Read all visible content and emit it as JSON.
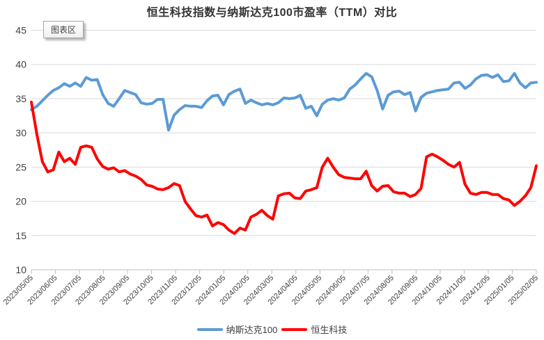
{
  "chart_area_tooltip": {
    "label": "图表区"
  },
  "chart_data": {
    "type": "line",
    "title": "恒生科技指数与纳斯达克100市盈率（TTM）对比",
    "xlabel": "",
    "ylabel": "",
    "ylim": [
      10,
      45
    ],
    "y_ticks": [
      10,
      15,
      20,
      25,
      30,
      35,
      40,
      45
    ],
    "grid": true,
    "legend_position": "bottom",
    "x_tick_labels": [
      "2023/05/05",
      "2023/06/05",
      "2023/07/05",
      "2023/08/05",
      "2023/09/05",
      "2023/10/05",
      "2023/11/05",
      "2023/12/05",
      "2024/01/05",
      "2024/02/05",
      "2024/03/05",
      "2024/04/05",
      "2024/05/05",
      "2024/06/05",
      "2024/07/05",
      "2024/08/05",
      "2024/09/05",
      "2024/10/05",
      "2024/11/05",
      "2024/12/05",
      "2025/01/05",
      "2025/02/05"
    ],
    "series": [
      {
        "name": "纳斯达克100",
        "color": "#5B9BD5",
        "values": [
          33.4,
          33.9,
          34.7,
          35.5,
          36.2,
          36.6,
          37.2,
          36.8,
          37.3,
          36.8,
          38.1,
          37.7,
          37.8,
          35.6,
          34.3,
          33.9,
          35.0,
          36.2,
          35.9,
          35.6,
          34.4,
          34.2,
          34.3,
          34.9,
          34.9,
          30.4,
          32.6,
          33.4,
          34.0,
          33.9,
          33.9,
          33.7,
          34.7,
          35.4,
          35.5,
          34.1,
          35.6,
          36.1,
          36.4,
          34.3,
          34.8,
          34.4,
          34.1,
          34.3,
          34.1,
          34.4,
          35.1,
          35.0,
          35.1,
          35.5,
          33.6,
          33.9,
          32.5,
          34.2,
          34.8,
          35.0,
          34.8,
          35.1,
          36.4,
          37.0,
          37.9,
          38.7,
          38.2,
          36.2,
          33.5,
          35.5,
          36.0,
          36.1,
          35.6,
          35.9,
          33.2,
          35.2,
          35.8,
          36.0,
          36.2,
          36.3,
          36.4,
          37.3,
          37.4,
          36.5,
          37.0,
          37.9,
          38.4,
          38.5,
          38.1,
          38.5,
          37.5,
          37.6,
          38.7,
          37.3,
          36.6,
          37.3,
          37.4
        ]
      },
      {
        "name": "恒生科技",
        "color": "#FF0000",
        "values": [
          34.5,
          29.8,
          25.8,
          24.3,
          24.6,
          27.2,
          25.8,
          26.3,
          25.4,
          27.9,
          28.1,
          27.9,
          26.2,
          25.1,
          24.7,
          24.9,
          24.3,
          24.5,
          24.0,
          23.7,
          23.2,
          22.4,
          22.2,
          21.8,
          21.7,
          22.0,
          22.6,
          22.3,
          20.0,
          18.9,
          17.9,
          17.7,
          18.0,
          16.4,
          16.9,
          16.6,
          15.8,
          15.3,
          16.1,
          15.8,
          17.7,
          18.1,
          18.7,
          17.9,
          17.4,
          20.8,
          21.1,
          21.2,
          20.5,
          20.4,
          21.5,
          21.7,
          22.0,
          25.0,
          26.3,
          25.0,
          23.9,
          23.5,
          23.4,
          23.3,
          23.3,
          24.4,
          22.3,
          21.5,
          22.2,
          22.3,
          21.4,
          21.2,
          21.2,
          20.7,
          21.0,
          21.9,
          26.5,
          26.9,
          26.5,
          26.0,
          25.4,
          25.0,
          25.7,
          22.5,
          21.2,
          21.0,
          21.3,
          21.3,
          21.0,
          21.0,
          20.4,
          20.2,
          19.4,
          20.0,
          20.8,
          22.0,
          25.2
        ]
      }
    ],
    "style": {
      "grid_color": "#D9D9D9",
      "axis_color": "#BFBFBF",
      "tick_label_color": "#404040",
      "line_width": 4
    }
  }
}
